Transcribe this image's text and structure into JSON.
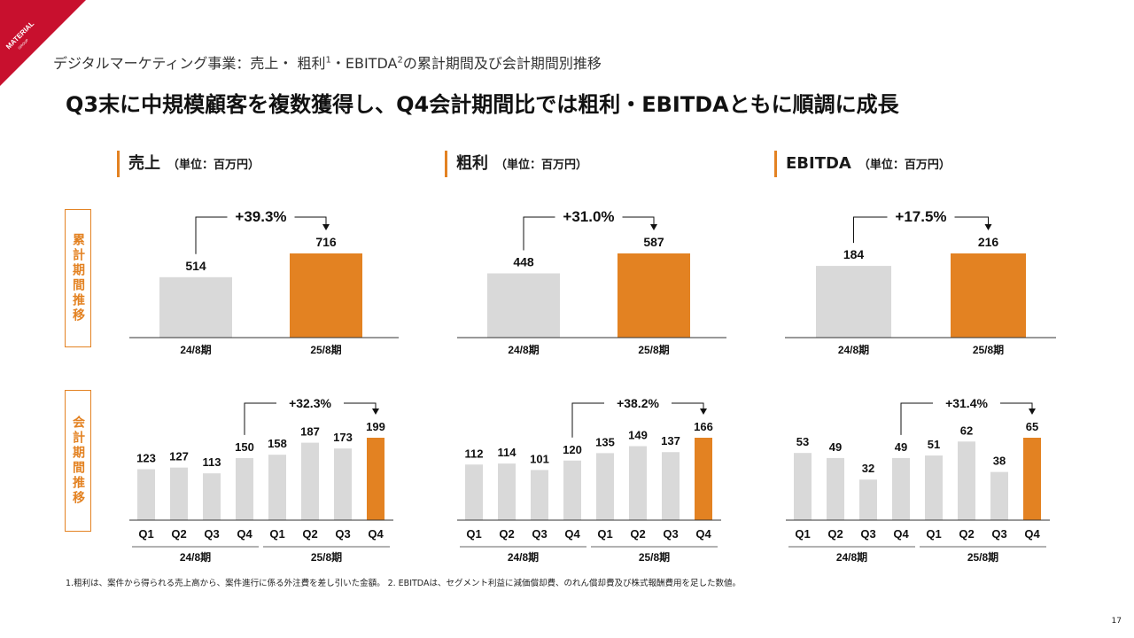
{
  "subtitle": {
    "main": "デジタルマーケティング事業：売上・ 粗利",
    "sup1": "1",
    "mid": "・EBITDA",
    "sup2": "2",
    "tail": "の累計期間及び会計期間別推移"
  },
  "logo": {
    "name": "MATERIAL",
    "sub": "GROUP"
  },
  "headline": "Q3末に中規模顧客を複数獲得し、Q4会計期間比では粗利・EBITDAともに順調に成長",
  "row_labels": {
    "cumulative": "累計期間推移",
    "quarterly": "会計期間推移"
  },
  "sections": [
    {
      "name": "売上",
      "unit": "（単位：百万円）"
    },
    {
      "name": "粗利",
      "unit": "（単位：百万円）"
    },
    {
      "name": "EBITDA",
      "unit": "（単位：百万円）"
    }
  ],
  "colors": {
    "accent": "#e38222",
    "bar_gray": "#d9d9d9",
    "logo_red": "#c8102e"
  },
  "chart_data": [
    {
      "id": "sales-cumulative",
      "type": "bar",
      "categories": [
        "24/8期",
        "25/8期"
      ],
      "values": [
        514,
        716
      ],
      "growth": "+39.3%",
      "ylim": [
        0,
        716
      ]
    },
    {
      "id": "gross-profit-cumulative",
      "type": "bar",
      "categories": [
        "24/8期",
        "25/8期"
      ],
      "values": [
        448,
        587
      ],
      "growth": "+31.0%",
      "ylim": [
        0,
        587
      ]
    },
    {
      "id": "ebitda-cumulative",
      "type": "bar",
      "categories": [
        "24/8期",
        "25/8期"
      ],
      "values": [
        184,
        216
      ],
      "growth": "+17.5%",
      "ylim": [
        0,
        216
      ]
    },
    {
      "id": "sales-quarterly",
      "type": "bar",
      "categories": [
        "Q1",
        "Q2",
        "Q3",
        "Q4",
        "Q1",
        "Q2",
        "Q3",
        "Q4"
      ],
      "periods": [
        "24/8期",
        "25/8期"
      ],
      "values": [
        123,
        127,
        113,
        150,
        158,
        187,
        173,
        199
      ],
      "growth": "+32.3%",
      "ylim": [
        0,
        199
      ]
    },
    {
      "id": "gross-profit-quarterly",
      "type": "bar",
      "categories": [
        "Q1",
        "Q2",
        "Q3",
        "Q4",
        "Q1",
        "Q2",
        "Q3",
        "Q4"
      ],
      "periods": [
        "24/8期",
        "25/8期"
      ],
      "values": [
        112,
        114,
        101,
        120,
        135,
        149,
        137,
        166
      ],
      "growth": "+38.2%",
      "ylim": [
        0,
        166
      ]
    },
    {
      "id": "ebitda-quarterly",
      "type": "bar",
      "categories": [
        "Q1",
        "Q2",
        "Q3",
        "Q4",
        "Q1",
        "Q2",
        "Q3",
        "Q4"
      ],
      "periods": [
        "24/8期",
        "25/8期"
      ],
      "values": [
        53,
        49,
        32,
        49,
        51,
        62,
        38,
        65
      ],
      "growth": "+31.4%",
      "ylim": [
        0,
        65
      ]
    }
  ],
  "footnote": "1.粗利は、案件から得られる売上高から、案件進行に係る外注費を差し引いた金額。 2. EBITDAは、セグメント利益に減価償却費、のれん償却費及び株式報酬費用を足した数値。",
  "page_number": "17"
}
